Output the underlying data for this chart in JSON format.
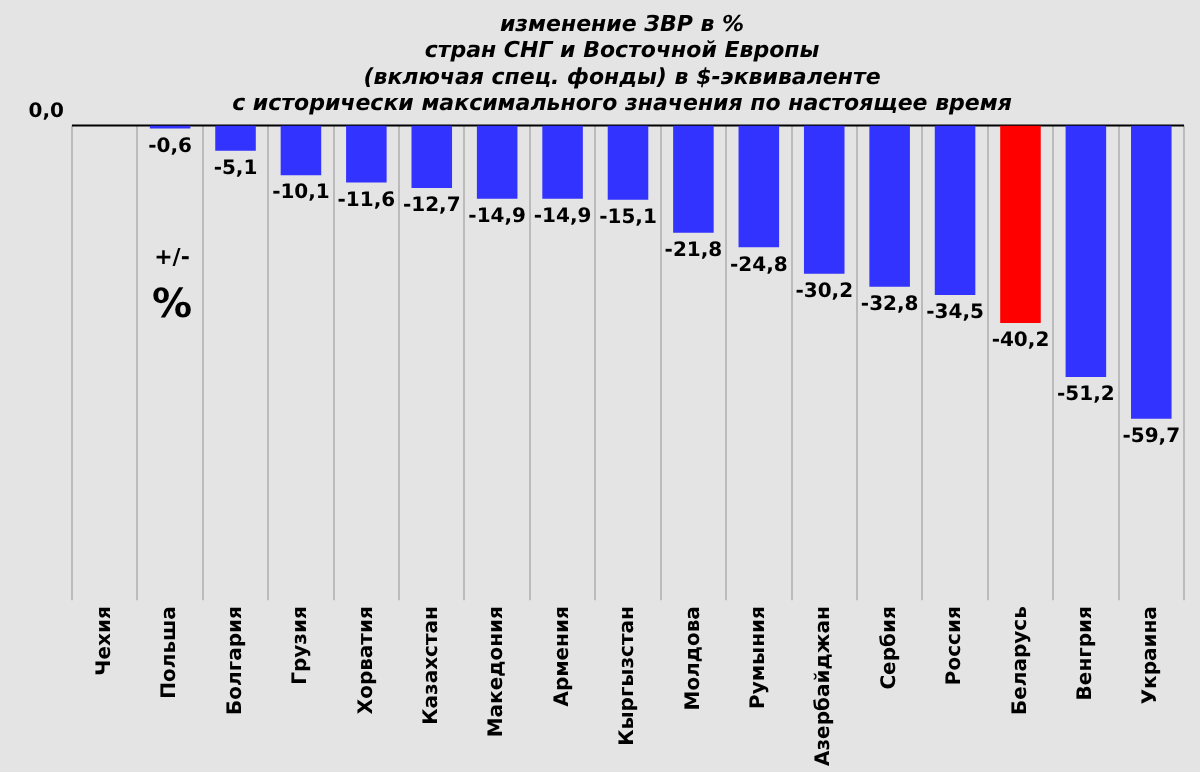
{
  "chart_data": {
    "type": "bar",
    "title": [
      "изменение ЗВР в %",
      "стран СНГ и Восточной Европы",
      "(включая спец. фонды) в $-эквиваленте",
      "с исторически максимального значения по настоящее время"
    ],
    "ylabel": "+/- %",
    "categories": [
      "Чехия",
      "Польша",
      "Болгария",
      "Грузия",
      "Хорватия",
      "Казахстан",
      "Македония",
      "Армения",
      "Кыргызстан",
      "Молдова",
      "Румыния",
      "Азербайджан",
      "Сербия",
      "Россия",
      "Беларусь",
      "Венгрия",
      "Украина"
    ],
    "values": [
      0,
      -0.6,
      -5.1,
      -10.1,
      -11.6,
      -12.7,
      -14.9,
      -14.9,
      -15.1,
      -21.8,
      -24.8,
      -30.2,
      -32.8,
      -34.5,
      -40.2,
      -51.2,
      -59.7
    ],
    "value_labels": [
      null,
      "-0,6",
      "-5,1",
      "-10,1",
      "-11,6",
      "-12,7",
      "-14,9",
      "-14,9",
      "-15,1",
      "-21,8",
      "-24,8",
      "-30,2",
      "-32,8",
      "-34,5",
      "-40,2",
      "-51,2",
      "-59,7"
    ],
    "colors": [
      "#3333ff",
      "#3333ff",
      "#3333ff",
      "#3333ff",
      "#3333ff",
      "#3333ff",
      "#3333ff",
      "#3333ff",
      "#3333ff",
      "#3333ff",
      "#3333ff",
      "#3333ff",
      "#3333ff",
      "#3333ff",
      "#ff0000",
      "#3333ff",
      "#3333ff"
    ],
    "annotations": [
      "0,0"
    ],
    "grid": "x",
    "legend": false
  }
}
